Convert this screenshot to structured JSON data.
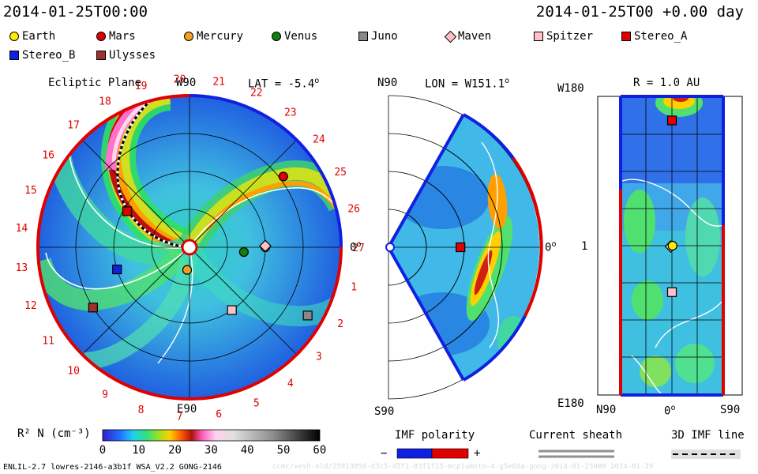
{
  "header": {
    "datetime": "2014-01-25T00:00",
    "elapsed": "2014-01-25T00 +0.00 day"
  },
  "legend": [
    {
      "name": "Earth",
      "shape": "circle",
      "color": "#ffee00"
    },
    {
      "name": "Mars",
      "shape": "circle",
      "color": "#e00000"
    },
    {
      "name": "Mercury",
      "shape": "circle",
      "color": "#f0a020"
    },
    {
      "name": "Venus",
      "shape": "circle",
      "color": "#108010"
    },
    {
      "name": "Juno",
      "shape": "square",
      "color": "#888888"
    },
    {
      "name": "Maven",
      "shape": "diamond",
      "color": "#ffc0c8"
    },
    {
      "name": "Spitzer",
      "shape": "square",
      "color": "#ffc0c8"
    },
    {
      "name": "Stereo_A",
      "shape": "square",
      "color": "#e00000"
    },
    {
      "name": "Stereo_B",
      "shape": "square",
      "color": "#1020e0"
    },
    {
      "name": "Ulysses",
      "shape": "square",
      "color": "#a03030"
    }
  ],
  "panels": {
    "ecliptic": {
      "title": "Ecliptic Plane",
      "top_label": "W90",
      "bottom_label": "E90",
      "right_label": "0",
      "lat_label": "LAT = -5.4",
      "hour_labels": [
        "19",
        "20",
        "21",
        "22",
        "23",
        "24",
        "25",
        "26",
        "27",
        "1",
        "2",
        "3",
        "4",
        "5",
        "6",
        "7",
        "8",
        "9",
        "10",
        "11",
        "12",
        "13",
        "14",
        "15",
        "16",
        "17",
        "18"
      ]
    },
    "meridional": {
      "top_label": "N90",
      "bottom_label": "S90",
      "right_label": "0",
      "lon_label": "LON = W151.1"
    },
    "radial": {
      "title": "R = 1.0 AU",
      "top_left_label": "W180",
      "bottom_left_label": "E180",
      "mid_left_label": "1",
      "bottom_labels": [
        "N90",
        "0",
        "S90"
      ]
    }
  },
  "colorbar": {
    "label": "R² N (cm⁻³)",
    "ticks": [
      "0",
      "10",
      "20",
      "30",
      "40",
      "50",
      "60"
    ]
  },
  "imf": {
    "polarity_label": "IMF polarity",
    "minus": "−",
    "plus": "+",
    "colors": [
      "#1020e0",
      "#e00000"
    ],
    "current_sheath_label": "Current sheath",
    "imf_line_label": "3D IMF line"
  },
  "footer": {
    "model": "ENLIL-2.7 lowres-2146-a3b1f WSA_V2.2 GONG-2146",
    "watermark": "ccmc/vesh-old/2591305d-d3c5-45f1-83f1f15-mcp1umnto-4-g5e6da-gong-2014-01-25000   2014-01-29"
  },
  "chart_data": {
    "type": "heatmap",
    "title": "",
    "colorbar": {
      "label": "R² N (cm⁻³)",
      "range": [
        0,
        60
      ],
      "ticks": [
        0,
        10,
        20,
        30,
        40,
        50,
        60
      ]
    },
    "ecliptic_plane": {
      "lat": "-5.4",
      "objects": [
        {
          "name": "Earth",
          "angle_deg": 0,
          "r_au": 1.0
        },
        {
          "name": "Mars",
          "angle_deg": 37,
          "r_au": 1.55
        },
        {
          "name": "Mercury",
          "angle_deg": -96,
          "r_au": 0.3
        },
        {
          "name": "Venus",
          "angle_deg": -5,
          "r_au": 0.72
        },
        {
          "name": "Juno",
          "angle_deg": -30,
          "r_au": 1.8
        },
        {
          "name": "Maven",
          "angle_deg": 1,
          "r_au": 1.0
        },
        {
          "name": "Spitzer",
          "angle_deg": -56,
          "r_au": 1.0
        },
        {
          "name": "Stereo_A",
          "angle_deg": 150,
          "r_au": 0.95
        },
        {
          "name": "Stereo_B",
          "angle_deg": -163,
          "r_au": 1.0
        },
        {
          "name": "Ulysses",
          "angle_deg": -148,
          "r_au": 1.5
        }
      ]
    },
    "meridional_plane": {
      "lon": "W151.1",
      "objects": [
        {
          "name": "Stereo_A",
          "lat_deg": 0,
          "r_au": 0.95
        }
      ]
    },
    "radial_shell": {
      "r_au": 1.0,
      "objects": [
        {
          "name": "Stereo_A",
          "lat_deg": 0,
          "lon_deg": 151
        },
        {
          "name": "Maven",
          "lat_deg": 2,
          "lon_deg": -1
        },
        {
          "name": "Earth",
          "lat_deg": -1,
          "lon_deg": 0
        },
        {
          "name": "Spitzer",
          "lat_deg": 0,
          "lon_deg": -56
        }
      ]
    }
  }
}
